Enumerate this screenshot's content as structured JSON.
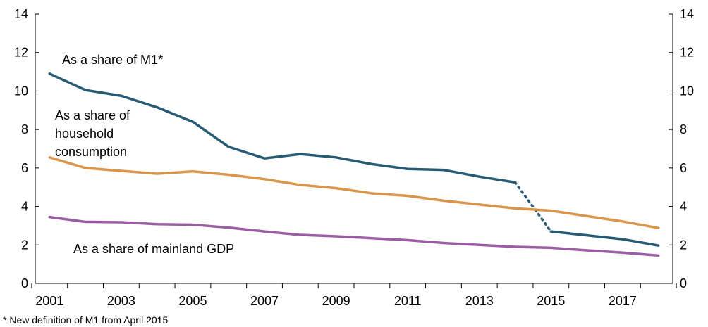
{
  "chart_data": {
    "type": "line",
    "x": [
      2001,
      2002,
      2003,
      2004,
      2005,
      2006,
      2007,
      2008,
      2009,
      2010,
      2011,
      2012,
      2013,
      2014,
      2015,
      2016,
      2017,
      2018
    ],
    "xlim": [
      2000.6,
      2018.4
    ],
    "ylim": [
      0,
      14
    ],
    "x_ticks": [
      2001,
      2003,
      2005,
      2007,
      2009,
      2011,
      2013,
      2015,
      2017
    ],
    "y_ticks": [
      0,
      2,
      4,
      6,
      8,
      10,
      12,
      14
    ],
    "secondary_y_axis": true,
    "grid": false,
    "series": [
      {
        "name": "As a share of M1*",
        "color": "#275a73",
        "values": [
          10.9,
          10.05,
          9.75,
          9.15,
          8.4,
          7.1,
          6.5,
          6.72,
          6.55,
          6.2,
          5.95,
          5.9,
          5.55,
          5.25,
          2.7,
          2.5,
          2.3,
          1.97
        ],
        "break_between": [
          2014,
          2015
        ]
      },
      {
        "name": "As a share of household consumption",
        "color": "#d9954a",
        "values": [
          6.55,
          6.0,
          5.85,
          5.7,
          5.82,
          5.65,
          5.42,
          5.12,
          4.95,
          4.68,
          4.55,
          4.3,
          4.1,
          3.9,
          3.78,
          3.5,
          3.22,
          2.88
        ]
      },
      {
        "name": "As a share of mainland GDP",
        "color": "#9a5ca3",
        "values": [
          3.45,
          3.2,
          3.18,
          3.08,
          3.05,
          2.9,
          2.7,
          2.52,
          2.45,
          2.35,
          2.25,
          2.1,
          2.0,
          1.9,
          1.85,
          1.72,
          1.6,
          1.45
        ]
      }
    ],
    "annotations": {
      "m1": "As a share of M1*",
      "consumption_line1": "As a share of",
      "consumption_line2": "household",
      "consumption_line3": "consumption",
      "gdp": "As a share of mainland GDP"
    },
    "footnote": "* New definition of M1 from April 2015"
  }
}
